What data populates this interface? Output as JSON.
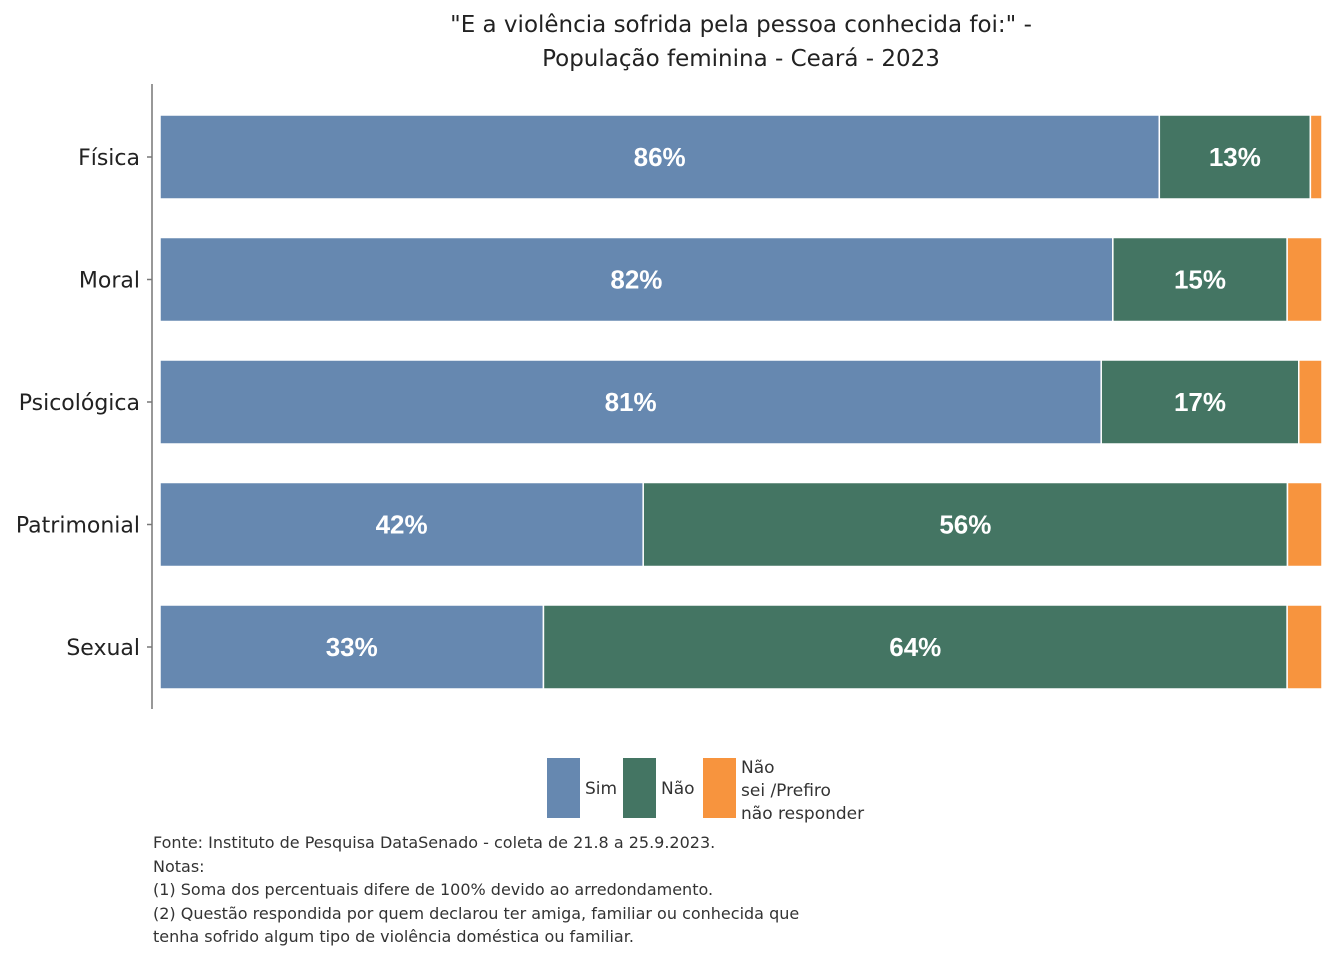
{
  "chart_data": {
    "type": "bar",
    "orientation": "horizontal",
    "stacked": true,
    "title": "\"E a violência sofrida pela pessoa conhecida foi:\" - População feminina - Ceará - 2023",
    "title_lines": [
      "\"E a violência sofrida pela pessoa conhecida foi:\" -",
      "População feminina - Ceará - 2023"
    ],
    "categories": [
      "Física",
      "Moral",
      "Psicológica",
      "Patrimonial",
      "Sexual"
    ],
    "series": [
      {
        "name": "Sim",
        "color": "#6688B0",
        "values": [
          86,
          82,
          81,
          42,
          33
        ],
        "labels": [
          "86%",
          "82%",
          "81%",
          "42%",
          "33%"
        ]
      },
      {
        "name": "Não",
        "color": "#447563",
        "values": [
          13,
          15,
          17,
          56,
          64
        ],
        "labels": [
          "13%",
          "15%",
          "17%",
          "56%",
          "64%"
        ]
      },
      {
        "name": "Não sei /Prefiro não responder",
        "color": "#F7943E",
        "values": [
          1,
          3,
          2,
          3,
          3
        ],
        "labels": [
          "",
          "",
          "",
          "",
          ""
        ]
      }
    ],
    "legend_entries": [
      {
        "lines": [
          "Sim"
        ],
        "color": "#6688B0"
      },
      {
        "lines": [
          "Não"
        ],
        "color": "#447563"
      },
      {
        "lines": [
          "Não",
          "sei /Prefiro",
          "não responder"
        ],
        "color": "#F7943E"
      }
    ],
    "xlim": [
      0,
      100
    ],
    "legend_position": "bottom",
    "grid": false,
    "xaxis_visible": false
  },
  "footer": {
    "lines": [
      "Fonte: Instituto de Pesquisa DataSenado - coleta de 21.8 a 25.9.2023.",
      "Notas:",
      "(1) Soma dos percentuais difere de 100% devido ao arredondamento.",
      "(2) Questão respondida por quem declarou ter amiga, familiar ou conhecida que",
      "tenha sofrido algum tipo de violência doméstica ou familiar."
    ]
  }
}
